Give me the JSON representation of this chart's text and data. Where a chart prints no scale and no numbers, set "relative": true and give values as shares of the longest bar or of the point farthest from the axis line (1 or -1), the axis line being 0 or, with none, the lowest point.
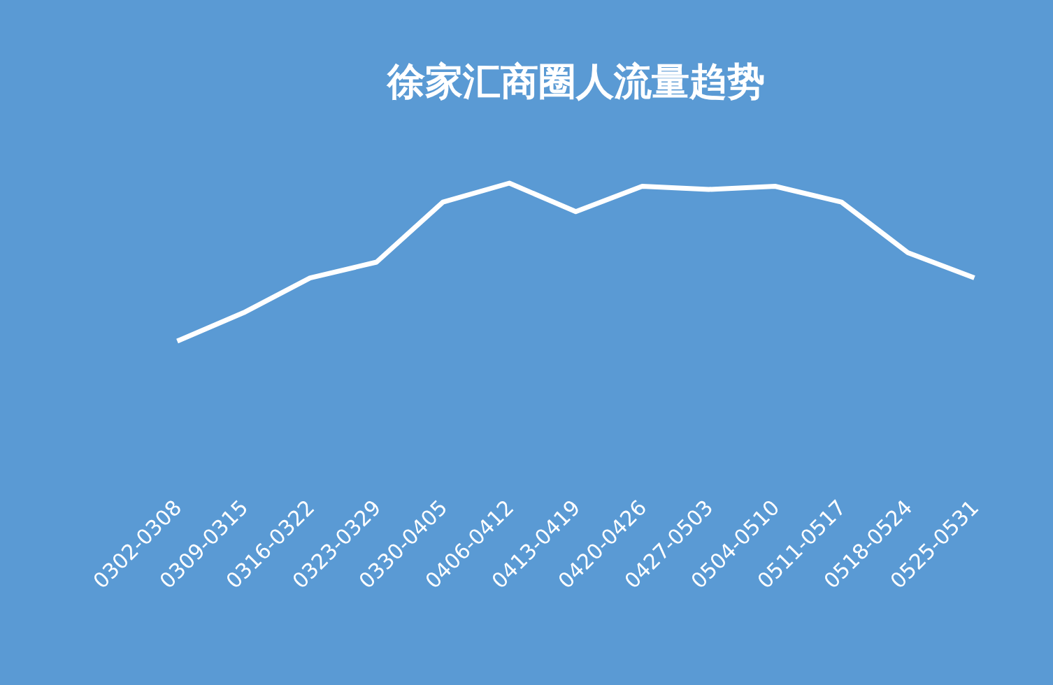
{
  "chart_data": {
    "type": "line",
    "title": "徐家汇商圈人流量趋势",
    "relative": true,
    "categories": [
      "0302-0308",
      "0309-0315",
      "0316-0322",
      "0323-0329",
      "0330-0405",
      "0406-0412",
      "0413-0419",
      "0420-0426",
      "0427-0503",
      "0504-0510",
      "0511-0517",
      "0518-0524",
      "0525-0531"
    ],
    "series": [
      {
        "color": "#ffffff",
        "values": [
          0,
          0.18,
          0.4,
          0.5,
          0.88,
          1,
          0.82,
          0.98,
          0.96,
          0.98,
          0.88,
          0.56,
          0.4
        ]
      }
    ]
  }
}
